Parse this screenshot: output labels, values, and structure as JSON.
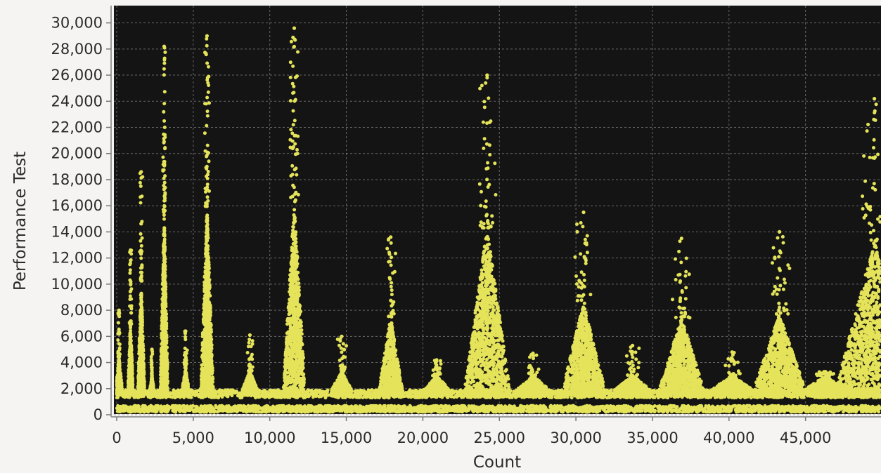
{
  "chart_data": {
    "type": "scatter",
    "title": "",
    "xlabel": "Count",
    "ylabel": "Performance Test",
    "xlim": [
      0,
      50000
    ],
    "ylim": [
      0,
      30500
    ],
    "x_ticks": [
      0,
      5000,
      10000,
      15000,
      20000,
      25000,
      30000,
      35000,
      40000,
      45000
    ],
    "x_tick_labels": [
      "0",
      "5,000",
      "10,000",
      "15,000",
      "20,000",
      "25,000",
      "30,000",
      "35,000",
      "40,000",
      "45,000"
    ],
    "y_ticks": [
      0,
      2000,
      4000,
      6000,
      8000,
      10000,
      12000,
      14000,
      16000,
      18000,
      20000,
      22000,
      24000,
      26000,
      28000,
      30000
    ],
    "y_tick_labels": [
      "0",
      "2,000",
      "4,000",
      "6,000",
      "8,000",
      "10,000",
      "12,000",
      "14,000",
      "16,000",
      "18,000",
      "20,000",
      "22,000",
      "24,000",
      "26,000",
      "28,000",
      "30,000"
    ],
    "grid": true,
    "legend": "none",
    "background_color": "#141414",
    "point_color": "#e4e35a",
    "baseline_bands": [
      {
        "y_min": 200,
        "y_max": 700
      },
      {
        "y_min": 1300,
        "y_max": 1900
      }
    ],
    "spikes": [
      {
        "x": 150,
        "half_width": 150,
        "peak": 8000
      },
      {
        "x": 900,
        "half_width": 120,
        "peak": 12600
      },
      {
        "x": 1600,
        "half_width": 150,
        "peak": 18600
      },
      {
        "x": 2300,
        "half_width": 100,
        "peak": 5000
      },
      {
        "x": 3100,
        "half_width": 170,
        "peak": 28200
      },
      {
        "x": 4500,
        "half_width": 170,
        "peak": 6400
      },
      {
        "x": 5900,
        "half_width": 280,
        "peak": 29000
      },
      {
        "x": 8700,
        "half_width": 350,
        "peak": 6100
      },
      {
        "x": 11600,
        "half_width": 480,
        "peak": 29600
      },
      {
        "x": 14700,
        "half_width": 480,
        "peak": 6000
      },
      {
        "x": 17900,
        "half_width": 520,
        "peak": 13600
      },
      {
        "x": 20900,
        "half_width": 620,
        "peak": 4200
      },
      {
        "x": 24200,
        "half_width": 1000,
        "peak": 26000
      },
      {
        "x": 27200,
        "half_width": 780,
        "peak": 4700
      },
      {
        "x": 30500,
        "half_width": 950,
        "peak": 15500
      },
      {
        "x": 33700,
        "half_width": 850,
        "peak": 5300
      },
      {
        "x": 36900,
        "half_width": 1000,
        "peak": 13500
      },
      {
        "x": 40200,
        "half_width": 1000,
        "peak": 4800
      },
      {
        "x": 43300,
        "half_width": 1150,
        "peak": 14000
      },
      {
        "x": 46300,
        "half_width": 1000,
        "peak": 3300
      },
      {
        "x": 49500,
        "half_width": 1700,
        "peak": 24200
      }
    ]
  }
}
